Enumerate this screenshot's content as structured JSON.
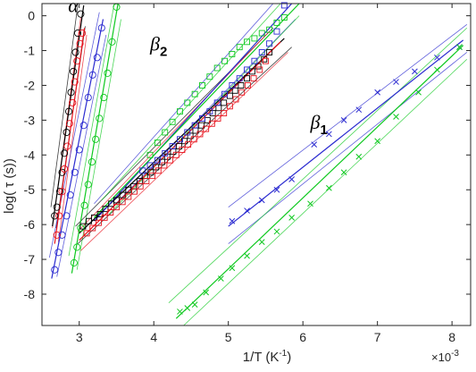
{
  "chart_data": {
    "type": "scatter",
    "xlabel_main": "1/T (K",
    "xlabel_sup": "-1",
    "xlabel_end": ")",
    "ylabel": "log( τ (s))",
    "xlim": [
      2.5,
      8.25
    ],
    "ylim": [
      -8.9,
      0.35
    ],
    "x_ticks": [
      3,
      4,
      5,
      6,
      7,
      8
    ],
    "x_tick_labels": [
      "3",
      "4",
      "5",
      "6",
      "7",
      "8"
    ],
    "y_ticks": [
      0,
      -1,
      -2,
      -3,
      -4,
      -5,
      -6,
      -7,
      -8
    ],
    "y_tick_labels": [
      "0",
      "-1",
      "-2",
      "-3",
      "-4",
      "-5",
      "-6",
      "-7",
      "-8"
    ],
    "x_multiplier": "×10",
    "x_multiplier_exp": "-3",
    "grid": false,
    "legend": "none",
    "colors": {
      "black": "#000000",
      "red": "#e8121c",
      "blue": "#2a2ad0",
      "green": "#0ec91f",
      "axis": "#262626"
    },
    "annotations": [
      {
        "base": "α",
        "sub": "",
        "x": 2.85,
        "y": 0.1
      },
      {
        "base": "β",
        "sub": "2",
        "x": 3.95,
        "y": -1.0
      },
      {
        "base": "β",
        "sub": "1",
        "x": 6.1,
        "y": -3.25
      }
    ],
    "series": [
      {
        "group": "alpha",
        "color": "black",
        "marker": "circle",
        "x": [
          2.67,
          2.7,
          2.74,
          2.77,
          2.8,
          2.83,
          2.86,
          2.89,
          2.92,
          2.95,
          2.98,
          3.02
        ],
        "y": [
          -5.75,
          -5.5,
          -5.05,
          -4.5,
          -3.95,
          -3.35,
          -2.75,
          -2.2,
          -1.6,
          -1.05,
          -0.5,
          0.05
        ],
        "fit": [
          [
            2.64,
            -6.05
          ],
          [
            3.06,
            0.3
          ]
        ],
        "ci_low": [
          [
            2.69,
            -6.1
          ],
          [
            3.08,
            -0.3
          ]
        ],
        "ci_high": [
          [
            2.62,
            -5.5
          ],
          [
            2.98,
            0.3
          ]
        ]
      },
      {
        "group": "alpha",
        "color": "red",
        "marker": "circle",
        "x": [
          2.7,
          2.73,
          2.77,
          2.8,
          2.84,
          2.87,
          2.91,
          2.94,
          2.97,
          3.01,
          3.04
        ],
        "y": [
          -6.3,
          -5.75,
          -5.05,
          -4.4,
          -3.75,
          -3.1,
          -2.5,
          -1.9,
          -1.3,
          -0.8,
          -0.5
        ],
        "fit": [
          [
            2.67,
            -6.55
          ],
          [
            3.07,
            -0.35
          ]
        ],
        "ci_low": [
          [
            2.72,
            -6.5
          ],
          [
            3.1,
            -0.55
          ]
        ],
        "ci_high": [
          [
            2.64,
            -6.1
          ],
          [
            3.02,
            -0.05
          ]
        ]
      },
      {
        "group": "alpha",
        "color": "blue",
        "marker": "circle",
        "x": [
          2.67,
          2.72,
          2.77,
          2.83,
          2.88,
          2.94,
          3.0,
          3.06,
          3.12,
          3.18,
          3.24,
          3.3
        ],
        "y": [
          -7.3,
          -6.8,
          -6.3,
          -5.75,
          -5.15,
          -4.5,
          -3.85,
          -3.15,
          -2.35,
          -1.7,
          -1.2,
          -0.35
        ],
        "fit": [
          [
            2.63,
            -7.55
          ],
          [
            3.32,
            -0.1
          ]
        ],
        "ci_low": [
          [
            2.7,
            -7.5
          ],
          [
            3.36,
            -0.55
          ]
        ],
        "ci_high": [
          [
            2.6,
            -6.95
          ],
          [
            3.27,
            0.1
          ]
        ]
      },
      {
        "group": "alpha",
        "color": "green",
        "marker": "circle",
        "x": [
          2.93,
          2.97,
          3.02,
          3.07,
          3.12,
          3.17,
          3.22,
          3.27,
          3.33,
          3.38,
          3.44,
          3.5
        ],
        "y": [
          -7.1,
          -6.65,
          -6.1,
          -5.45,
          -4.85,
          -4.2,
          -3.55,
          -2.95,
          -2.35,
          -1.65,
          -0.75,
          0.25
        ],
        "fit": [
          [
            2.9,
            -7.4
          ],
          [
            3.52,
            0.35
          ]
        ],
        "ci_low": [
          [
            2.97,
            -7.3
          ],
          [
            3.56,
            -0.1
          ]
        ],
        "ci_high": [
          [
            2.86,
            -6.9
          ],
          [
            3.47,
            0.35
          ]
        ]
      },
      {
        "group": "beta2",
        "color": "black",
        "marker": "square",
        "x": [
          3.05,
          3.13,
          3.2,
          3.28,
          3.35,
          3.43,
          3.5,
          3.58,
          3.66,
          3.73,
          3.81,
          3.88,
          3.96,
          4.03,
          4.11,
          4.18,
          4.26,
          4.34,
          4.41,
          4.49,
          4.56,
          4.64,
          4.72,
          4.79,
          4.87,
          4.94,
          5.02,
          5.09,
          5.17,
          5.25,
          5.32,
          5.4,
          5.48,
          5.55
        ],
        "y": [
          -6.05,
          -5.9,
          -5.8,
          -5.7,
          -5.55,
          -5.4,
          -5.3,
          -5.15,
          -5.0,
          -4.9,
          -4.75,
          -4.6,
          -4.5,
          -4.35,
          -4.2,
          -4.05,
          -3.9,
          -3.75,
          -3.6,
          -3.45,
          -3.3,
          -3.15,
          -3.0,
          -2.8,
          -2.65,
          -2.5,
          -2.3,
          -2.15,
          -2.0,
          -1.8,
          -1.6,
          -1.45,
          -1.25,
          -1.05
        ],
        "fit": [
          [
            3.0,
            -6.25
          ],
          [
            5.75,
            -0.65
          ]
        ],
        "ci_low": [
          [
            2.98,
            -6.55
          ],
          [
            5.85,
            -0.9
          ]
        ],
        "ci_high": [
          [
            2.95,
            -6.05
          ],
          [
            5.6,
            -0.35
          ]
        ]
      },
      {
        "group": "beta2",
        "color": "red",
        "marker": "square",
        "x": [
          3.1,
          3.18,
          3.26,
          3.34,
          3.42,
          3.5,
          3.58,
          3.66,
          3.74,
          3.82,
          3.9,
          3.98,
          4.06,
          4.14,
          4.22,
          4.3,
          4.38,
          4.46,
          4.54,
          4.62,
          4.7,
          4.78,
          4.86,
          4.94,
          5.02,
          5.1,
          5.18,
          5.26,
          5.34,
          5.42,
          5.5
        ],
        "y": [
          -6.25,
          -6.1,
          -5.95,
          -5.8,
          -5.65,
          -5.5,
          -5.35,
          -5.2,
          -5.05,
          -4.9,
          -4.75,
          -4.6,
          -4.45,
          -4.3,
          -4.15,
          -4.0,
          -3.85,
          -3.7,
          -3.55,
          -3.4,
          -3.25,
          -3.1,
          -2.95,
          -2.8,
          -2.6,
          -2.4,
          -2.2,
          -2.0,
          -1.8,
          -1.55,
          -1.3
        ],
        "fit": [
          [
            3.0,
            -6.45
          ],
          [
            5.7,
            -0.75
          ]
        ],
        "ci_low": [
          [
            3.02,
            -6.75
          ],
          [
            5.8,
            -1.05
          ]
        ],
        "ci_high": [
          [
            2.98,
            -6.2
          ],
          [
            5.55,
            -0.45
          ]
        ]
      },
      {
        "group": "beta2",
        "color": "blue",
        "marker": "square",
        "x": [
          3.85,
          3.95,
          4.05,
          4.15,
          4.25,
          4.35,
          4.45,
          4.55,
          4.65,
          4.75,
          4.85,
          4.95,
          5.05,
          5.15,
          5.25,
          5.35,
          5.45,
          5.55,
          5.65,
          5.75
        ],
        "y": [
          -4.45,
          -4.3,
          -4.15,
          -3.95,
          -3.75,
          -3.55,
          -3.35,
          -3.15,
          -2.95,
          -2.75,
          -2.5,
          -2.25,
          -2.0,
          -1.8,
          -1.55,
          -1.3,
          -1.05,
          -0.8,
          -0.45,
          0.3
        ],
        "fit": [
          [
            3.2,
            -5.9
          ],
          [
            5.85,
            0.35
          ]
        ],
        "ci_low": [
          [
            3.4,
            -5.6
          ],
          [
            5.9,
            -0.1
          ]
        ],
        "ci_high": [
          [
            3.2,
            -5.4
          ],
          [
            5.6,
            0.35
          ]
        ]
      },
      {
        "group": "beta2",
        "color": "green",
        "marker": "square",
        "x": [
          3.95,
          4.05,
          4.15,
          4.25,
          4.35,
          4.45,
          4.55,
          4.65,
          4.75,
          4.85,
          4.95,
          5.05,
          5.15,
          5.25,
          5.35,
          5.45,
          5.55,
          5.65,
          5.75
        ],
        "y": [
          -4.0,
          -3.65,
          -3.35,
          -3.05,
          -2.75,
          -2.5,
          -2.25,
          -2.0,
          -1.75,
          -1.5,
          -1.3,
          -1.1,
          -0.9,
          -0.75,
          -0.65,
          -0.5,
          -0.4,
          -0.2,
          -0.05
        ],
        "fit": [
          [
            3.2,
            -5.8
          ],
          [
            5.95,
            0.35
          ]
        ],
        "ci_low": [
          [
            3.4,
            -5.7
          ],
          [
            5.95,
            0.0
          ]
        ],
        "ci_high": [
          [
            3.3,
            -5.3
          ],
          [
            5.7,
            0.35
          ]
        ]
      },
      {
        "group": "beta1",
        "color": "blue",
        "marker": "x",
        "x": [
          5.05,
          5.25,
          5.45,
          5.65,
          5.85,
          6.15,
          6.35,
          6.55,
          6.75,
          7.0,
          7.25,
          7.5,
          7.8,
          8.1
        ],
        "y": [
          -5.9,
          -5.6,
          -5.3,
          -5.0,
          -4.7,
          -3.7,
          -3.4,
          -3.0,
          -2.7,
          -2.2,
          -1.9,
          -1.6,
          -1.2,
          -0.9
        ],
        "fit": [
          [
            5.0,
            -6.05
          ],
          [
            8.15,
            -0.7
          ]
        ],
        "ci_low": [
          [
            5.0,
            -6.55
          ],
          [
            8.2,
            -1.05
          ]
        ],
        "ci_high": [
          [
            5.0,
            -5.5
          ],
          [
            8.2,
            -0.25
          ]
        ]
      },
      {
        "group": "beta1",
        "color": "green",
        "marker": "x",
        "x": [
          4.35,
          4.45,
          4.55,
          4.7,
          4.9,
          5.05,
          5.25,
          5.45,
          5.65,
          5.85,
          6.1,
          6.35,
          6.55,
          6.75,
          7.0,
          7.25,
          7.55,
          7.8,
          8.1
        ],
        "y": [
          -8.5,
          -8.4,
          -8.3,
          -7.95,
          -7.55,
          -7.25,
          -6.9,
          -6.5,
          -6.2,
          -5.8,
          -5.4,
          -4.95,
          -4.5,
          -4.05,
          -3.6,
          -2.9,
          -2.2,
          -1.55,
          -0.9
        ],
        "fit": [
          [
            4.3,
            -8.7
          ],
          [
            8.15,
            -0.85
          ]
        ],
        "ci_low": [
          [
            4.4,
            -8.9
          ],
          [
            8.2,
            -1.25
          ]
        ],
        "ci_high": [
          [
            4.2,
            -8.25
          ],
          [
            8.2,
            -0.35
          ]
        ]
      }
    ]
  }
}
